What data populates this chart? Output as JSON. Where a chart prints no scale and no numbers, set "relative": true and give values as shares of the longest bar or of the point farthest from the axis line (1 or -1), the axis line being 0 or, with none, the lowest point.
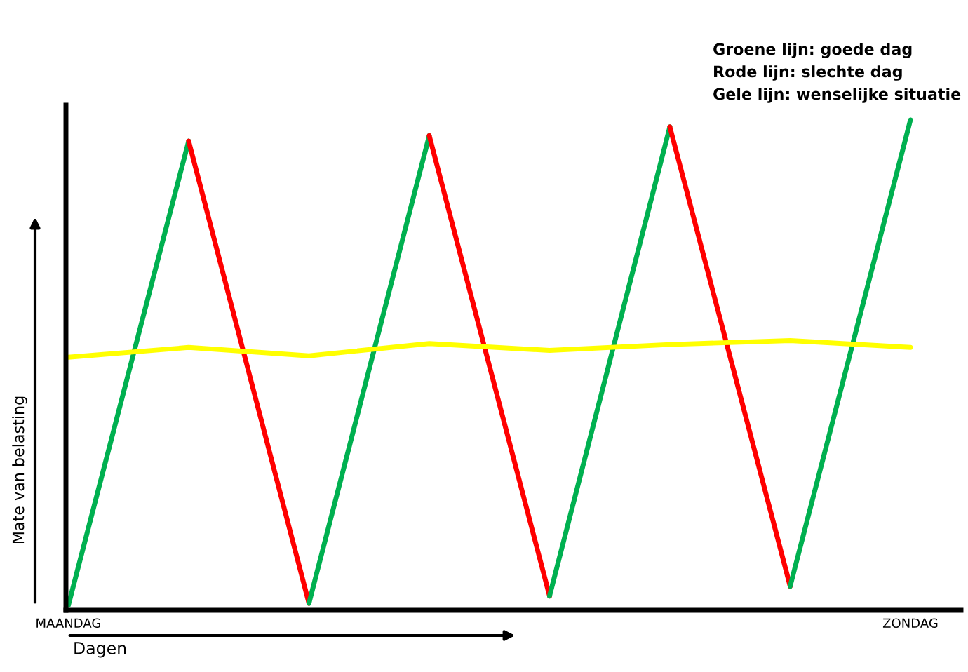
{
  "chart_data": {
    "type": "line",
    "relative": true,
    "xlabel": "Dagen",
    "ylabel": "Mate van belasting",
    "categories": [
      "MAANDAG",
      null,
      null,
      null,
      null,
      null,
      null,
      "ZONDAG"
    ],
    "marker": "none",
    "grid": false,
    "annotations": [
      "Groene lijn: goede dag",
      "Rode lijn: slechte dag",
      "Gele lijn: wenselijke situatie"
    ],
    "series": [
      {
        "color": "#00b050",
        "values": [
          0.01,
          0.957,
          null,
          null,
          null,
          null,
          null,
          null
        ]
      },
      {
        "color": "#ff0000",
        "values": [
          null,
          0.957,
          0.014,
          null,
          null,
          null,
          null,
          null
        ]
      },
      {
        "color": "#00b050",
        "values": [
          null,
          null,
          0.014,
          0.968,
          null,
          null,
          null,
          null
        ]
      },
      {
        "color": "#ff0000",
        "values": [
          null,
          null,
          null,
          0.968,
          0.029,
          null,
          null,
          null
        ]
      },
      {
        "color": "#00b050",
        "values": [
          null,
          null,
          null,
          null,
          0.029,
          0.986,
          null,
          null
        ]
      },
      {
        "color": "#ff0000",
        "values": [
          null,
          null,
          null,
          null,
          null,
          0.986,
          0.049,
          null
        ]
      },
      {
        "color": "#00b050",
        "values": [
          null,
          null,
          null,
          null,
          null,
          null,
          0.049,
          1
        ]
      },
      {
        "color": "#ffff00",
        "values": [
          0.516,
          0.536,
          0.519,
          0.544,
          0.53,
          0.542,
          0.55,
          0.536
        ]
      }
    ]
  }
}
